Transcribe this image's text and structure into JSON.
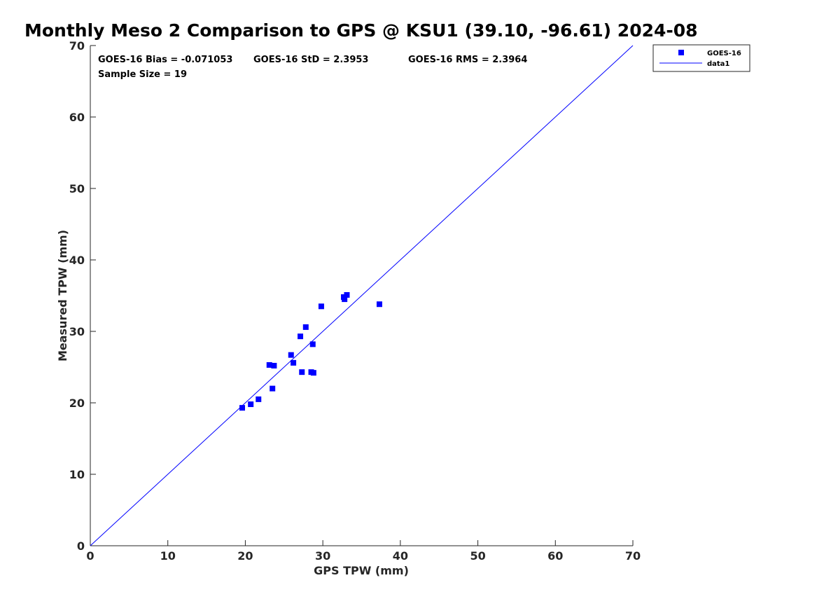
{
  "chart_data": {
    "type": "scatter",
    "title": "Monthly Meso 2 Comparison to GPS @ KSU1 (39.10, -96.61) 2024-08",
    "xlabel": "GPS TPW (mm)",
    "ylabel": "Measured TPW (mm)",
    "xlim": [
      0,
      70
    ],
    "ylim": [
      0,
      70
    ],
    "xticks": [
      "0",
      "10",
      "20",
      "30",
      "40",
      "50",
      "60",
      "70"
    ],
    "yticks": [
      "0",
      "10",
      "20",
      "30",
      "40",
      "50",
      "60",
      "70"
    ],
    "grid": false,
    "legend_position": "top-right outside",
    "stats": {
      "bias": "GOES-16 Bias = -0.071053",
      "std": "GOES-16 StD = 2.3953",
      "rms": "GOES-16 RMS = 2.3964",
      "sample_size": "Sample Size = 19"
    },
    "series": [
      {
        "name": "GOES-16",
        "marker": "square",
        "color": "#0000ff",
        "points": [
          [
            19.6,
            19.3
          ],
          [
            20.7,
            19.8
          ],
          [
            21.7,
            20.5
          ],
          [
            23.1,
            25.3
          ],
          [
            23.5,
            22.0
          ],
          [
            23.7,
            25.2
          ],
          [
            25.9,
            26.7
          ],
          [
            26.2,
            25.6
          ],
          [
            27.1,
            29.3
          ],
          [
            27.3,
            24.3
          ],
          [
            27.8,
            30.6
          ],
          [
            28.5,
            24.3
          ],
          [
            28.7,
            28.2
          ],
          [
            28.8,
            24.2
          ],
          [
            29.8,
            33.5
          ],
          [
            32.7,
            34.8
          ],
          [
            32.8,
            34.5
          ],
          [
            33.1,
            35.1
          ],
          [
            37.3,
            33.8
          ]
        ]
      },
      {
        "name": "data1",
        "type": "line",
        "color": "#0000ff",
        "points": [
          [
            0,
            0
          ],
          [
            70,
            70
          ]
        ]
      }
    ]
  }
}
